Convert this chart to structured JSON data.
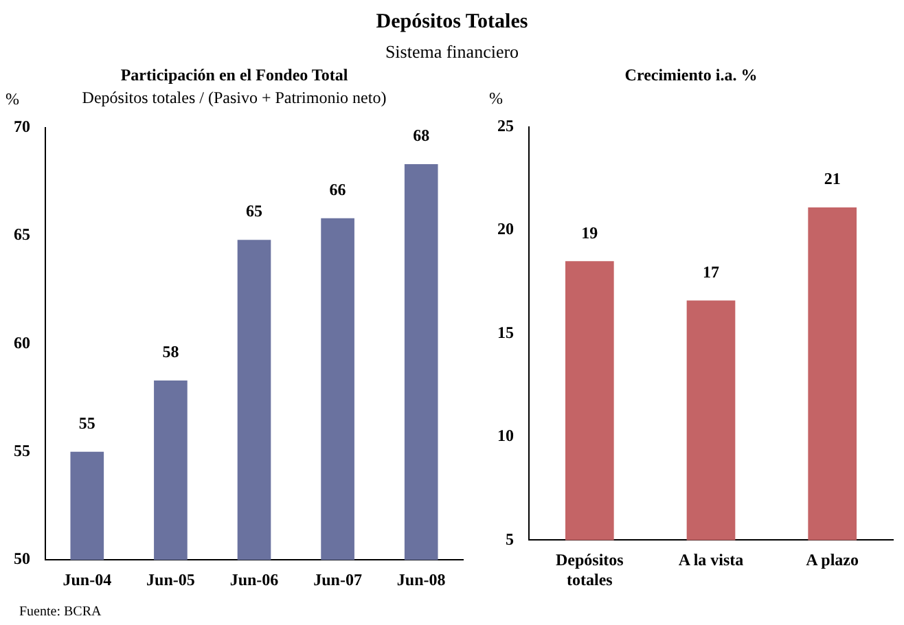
{
  "chart_data": [
    {
      "type": "bar",
      "title": "Participación en el Fondeo Total",
      "subtitle": "Depósitos totales / (Pasivo + Patrimonio neto)",
      "ylabel": "%",
      "categories": [
        "Jun-04",
        "Jun-05",
        "Jun-06",
        "Jun-07",
        "Jun-08"
      ],
      "values": [
        55.0,
        58.3,
        64.8,
        65.8,
        68.3
      ],
      "value_labels": [
        "55",
        "58",
        "65",
        "66",
        "68"
      ],
      "color": "#6a729f",
      "ylim": [
        50,
        70
      ],
      "yticks": [
        50,
        55,
        60,
        65,
        70
      ],
      "grid": false,
      "legend": false,
      "annotations": [
        "Depósitos Totales",
        "Sistema financiero",
        "Fuente: BCRA"
      ]
    },
    {
      "type": "bar",
      "title": "Crecimiento i.a. %",
      "ylabel": "%",
      "categories": [
        "Depósitos totales",
        "A la vista",
        "A plazo"
      ],
      "values": [
        18.5,
        16.6,
        21.1
      ],
      "value_labels": [
        "19",
        "17",
        "21"
      ],
      "color": "#c46466",
      "ylim": [
        5,
        25
      ],
      "yticks": [
        5,
        10,
        15,
        20,
        25
      ],
      "grid": false,
      "legend": false
    }
  ]
}
